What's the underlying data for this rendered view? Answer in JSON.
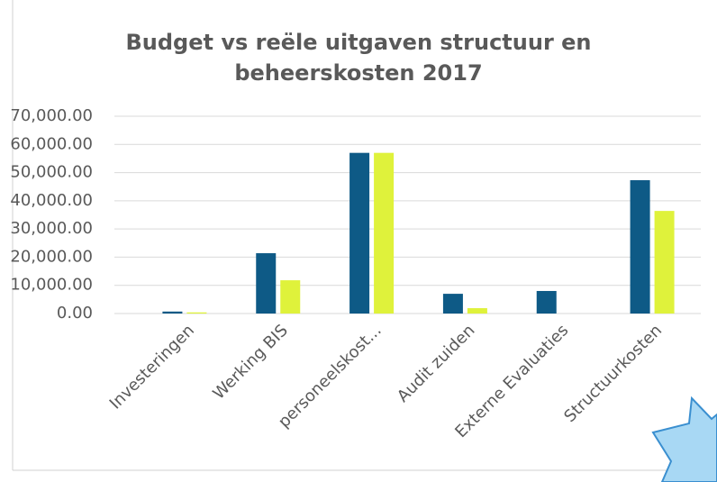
{
  "chart_data": {
    "type": "bar",
    "title": [
      "Budget vs reële uitgaven structuur en",
      "beheerskosten 2017"
    ],
    "categories": [
      "Investeringen",
      "Werking BIS",
      "personeelskost...",
      "Audit zuiden",
      "Externe Evaluaties",
      "Structuurkosten"
    ],
    "series": [
      {
        "color": "#0e5a86",
        "values": [
          700,
          21400,
          57000,
          7000,
          8000,
          47300
        ]
      },
      {
        "color": "#dff23b",
        "values": [
          400,
          11800,
          57000,
          1900,
          0,
          36400
        ]
      }
    ],
    "ylim": [
      0,
      70000
    ],
    "yticks": [
      {
        "value": 0,
        "label": "0.00"
      },
      {
        "value": 10000,
        "label": "10,000.00"
      },
      {
        "value": 20000,
        "label": "20,000.00"
      },
      {
        "value": 30000,
        "label": "30,000.00"
      },
      {
        "value": 40000,
        "label": "40,000.00"
      },
      {
        "value": 50000,
        "label": "50,000.00"
      },
      {
        "value": 60000,
        "label": "60,000.00"
      },
      {
        "value": 70000,
        "label": "70,000.00"
      }
    ],
    "grid": true
  }
}
